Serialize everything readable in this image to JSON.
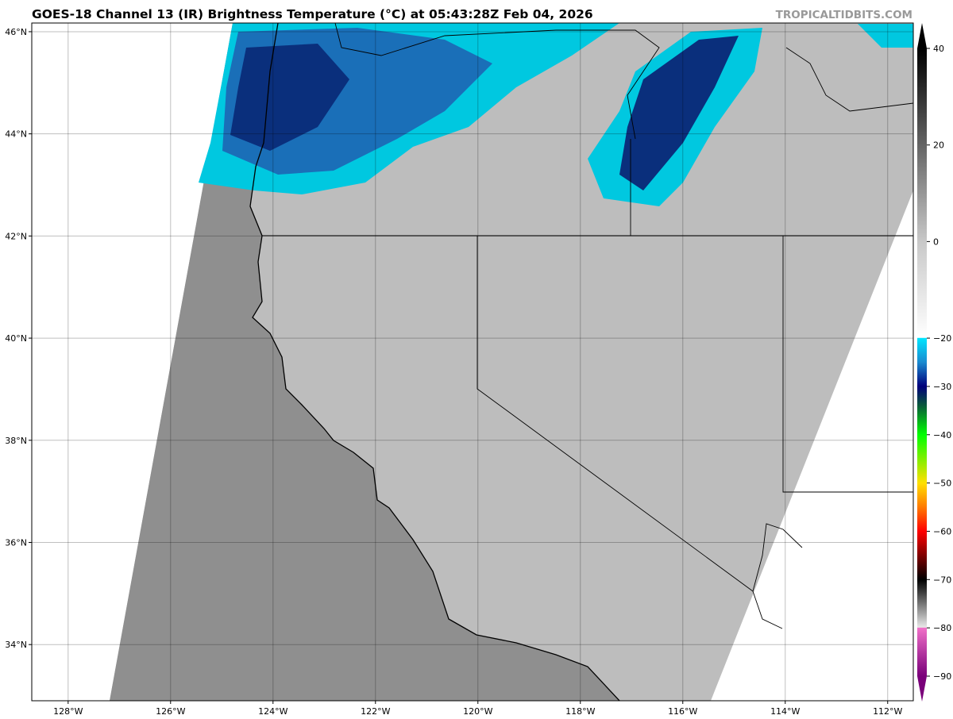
{
  "title": "GOES-18 Channel 13 (IR) Brightness Temperature (°C) at 05:43:28Z Feb 04, 2026",
  "watermark": "TROPICALTIDBITS.COM",
  "map": {
    "extent": {
      "lon": [
        -128.71,
        -111.5
      ],
      "lat": [
        32.9,
        46.17
      ]
    },
    "lon_ticks": [
      {
        "v": -128,
        "label": "128°W"
      },
      {
        "v": -126,
        "label": "126°W"
      },
      {
        "v": -124,
        "label": "124°W"
      },
      {
        "v": -122,
        "label": "122°W"
      },
      {
        "v": -120,
        "label": "120°W"
      },
      {
        "v": -118,
        "label": "118°W"
      },
      {
        "v": -116,
        "label": "116°W"
      },
      {
        "v": -114,
        "label": "114°W"
      },
      {
        "v": -112,
        "label": "112°W"
      }
    ],
    "lat_ticks": [
      {
        "v": 46,
        "label": "46°N"
      },
      {
        "v": 44,
        "label": "44°N"
      },
      {
        "v": 42,
        "label": "42°N"
      },
      {
        "v": 40,
        "label": "40°N"
      },
      {
        "v": 38,
        "label": "38°N"
      },
      {
        "v": 36,
        "label": "36°N"
      },
      {
        "v": 34,
        "label": "34°N"
      }
    ],
    "grid": true,
    "colors": {
      "ocean": "#8f8f8f",
      "land": "#b9b9b9",
      "cloud_cold": "#0a3f8c",
      "cloud_mid": "#1e7fc8",
      "cloud_edge": "#00d4e8"
    }
  },
  "colorbar": {
    "range": [
      -90,
      40
    ],
    "ticks": [
      40,
      20,
      0,
      -20,
      -30,
      -40,
      -50,
      -60,
      -70,
      -80,
      -90
    ],
    "stops": [
      {
        "t": 40,
        "c": "#000000"
      },
      {
        "t": 0,
        "c": "#c8c8c8"
      },
      {
        "t": -19.9,
        "c": "#ffffff"
      },
      {
        "t": -20,
        "c": "#00e5ff"
      },
      {
        "t": -25,
        "c": "#1a8ad0"
      },
      {
        "t": -30,
        "c": "#00007a"
      },
      {
        "t": -34,
        "c": "#0a5a3a"
      },
      {
        "t": -40,
        "c": "#00ff00"
      },
      {
        "t": -50,
        "c": "#ffe000"
      },
      {
        "t": -55,
        "c": "#ff7a00"
      },
      {
        "t": -60,
        "c": "#ff0000"
      },
      {
        "t": -70,
        "c": "#000000"
      },
      {
        "t": -79.9,
        "c": "#e8e8e8"
      },
      {
        "t": -80,
        "c": "#f070c8"
      },
      {
        "t": -90,
        "c": "#7a007a"
      }
    ]
  }
}
